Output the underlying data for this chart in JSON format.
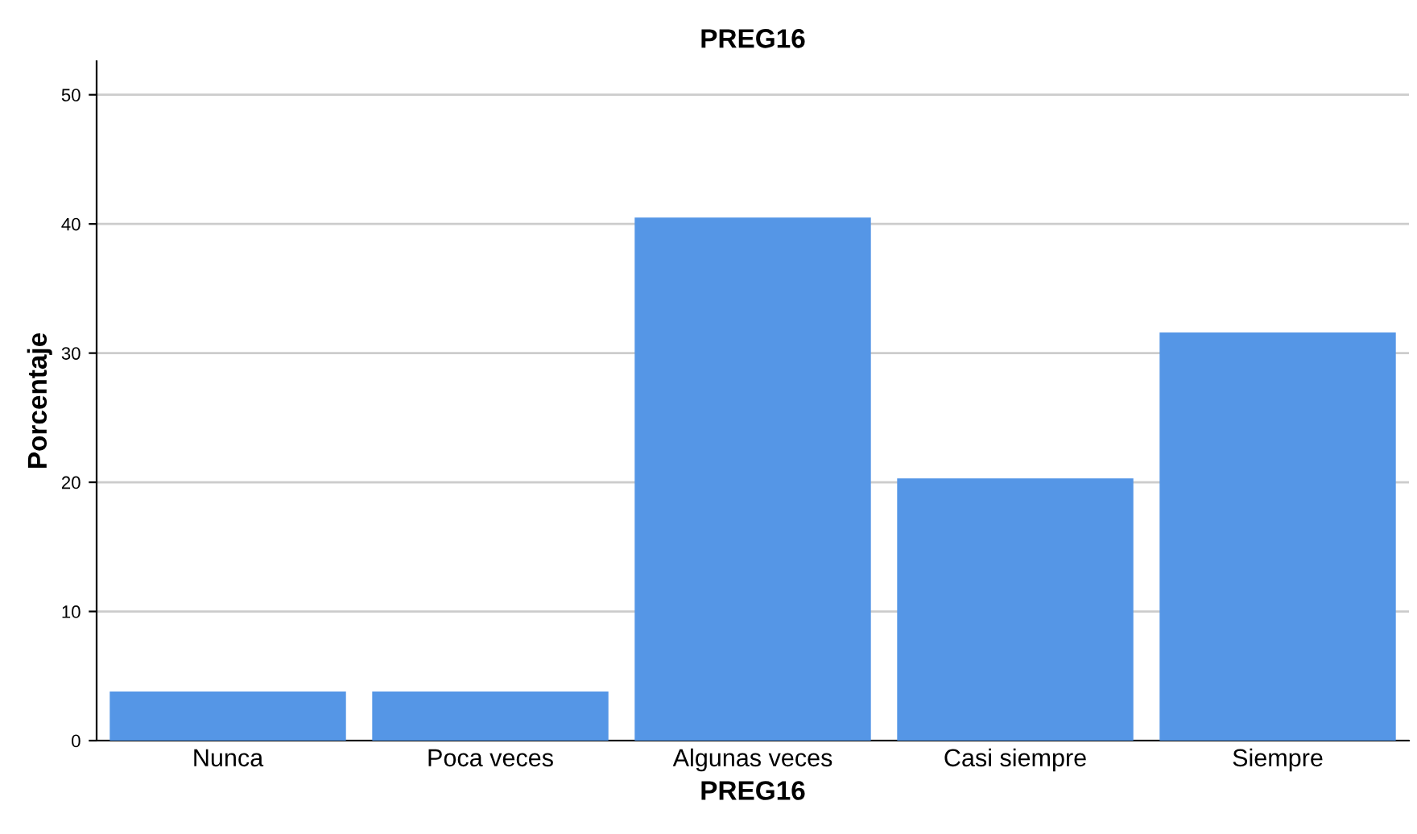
{
  "chart_data": {
    "type": "bar",
    "title": "PREG16",
    "xlabel": "PREG16",
    "ylabel": "Porcentaje",
    "categories": [
      "Nunca",
      "Poca veces",
      "Algunas veces",
      "Casi siempre",
      "Siempre"
    ],
    "values": [
      3.8,
      3.8,
      40.5,
      20.3,
      31.6
    ],
    "color": "#5596e6",
    "ylim": [
      0,
      52.6
    ],
    "yticks": [
      0,
      10,
      20,
      30,
      40,
      50
    ],
    "grid": "y",
    "legend": false
  }
}
